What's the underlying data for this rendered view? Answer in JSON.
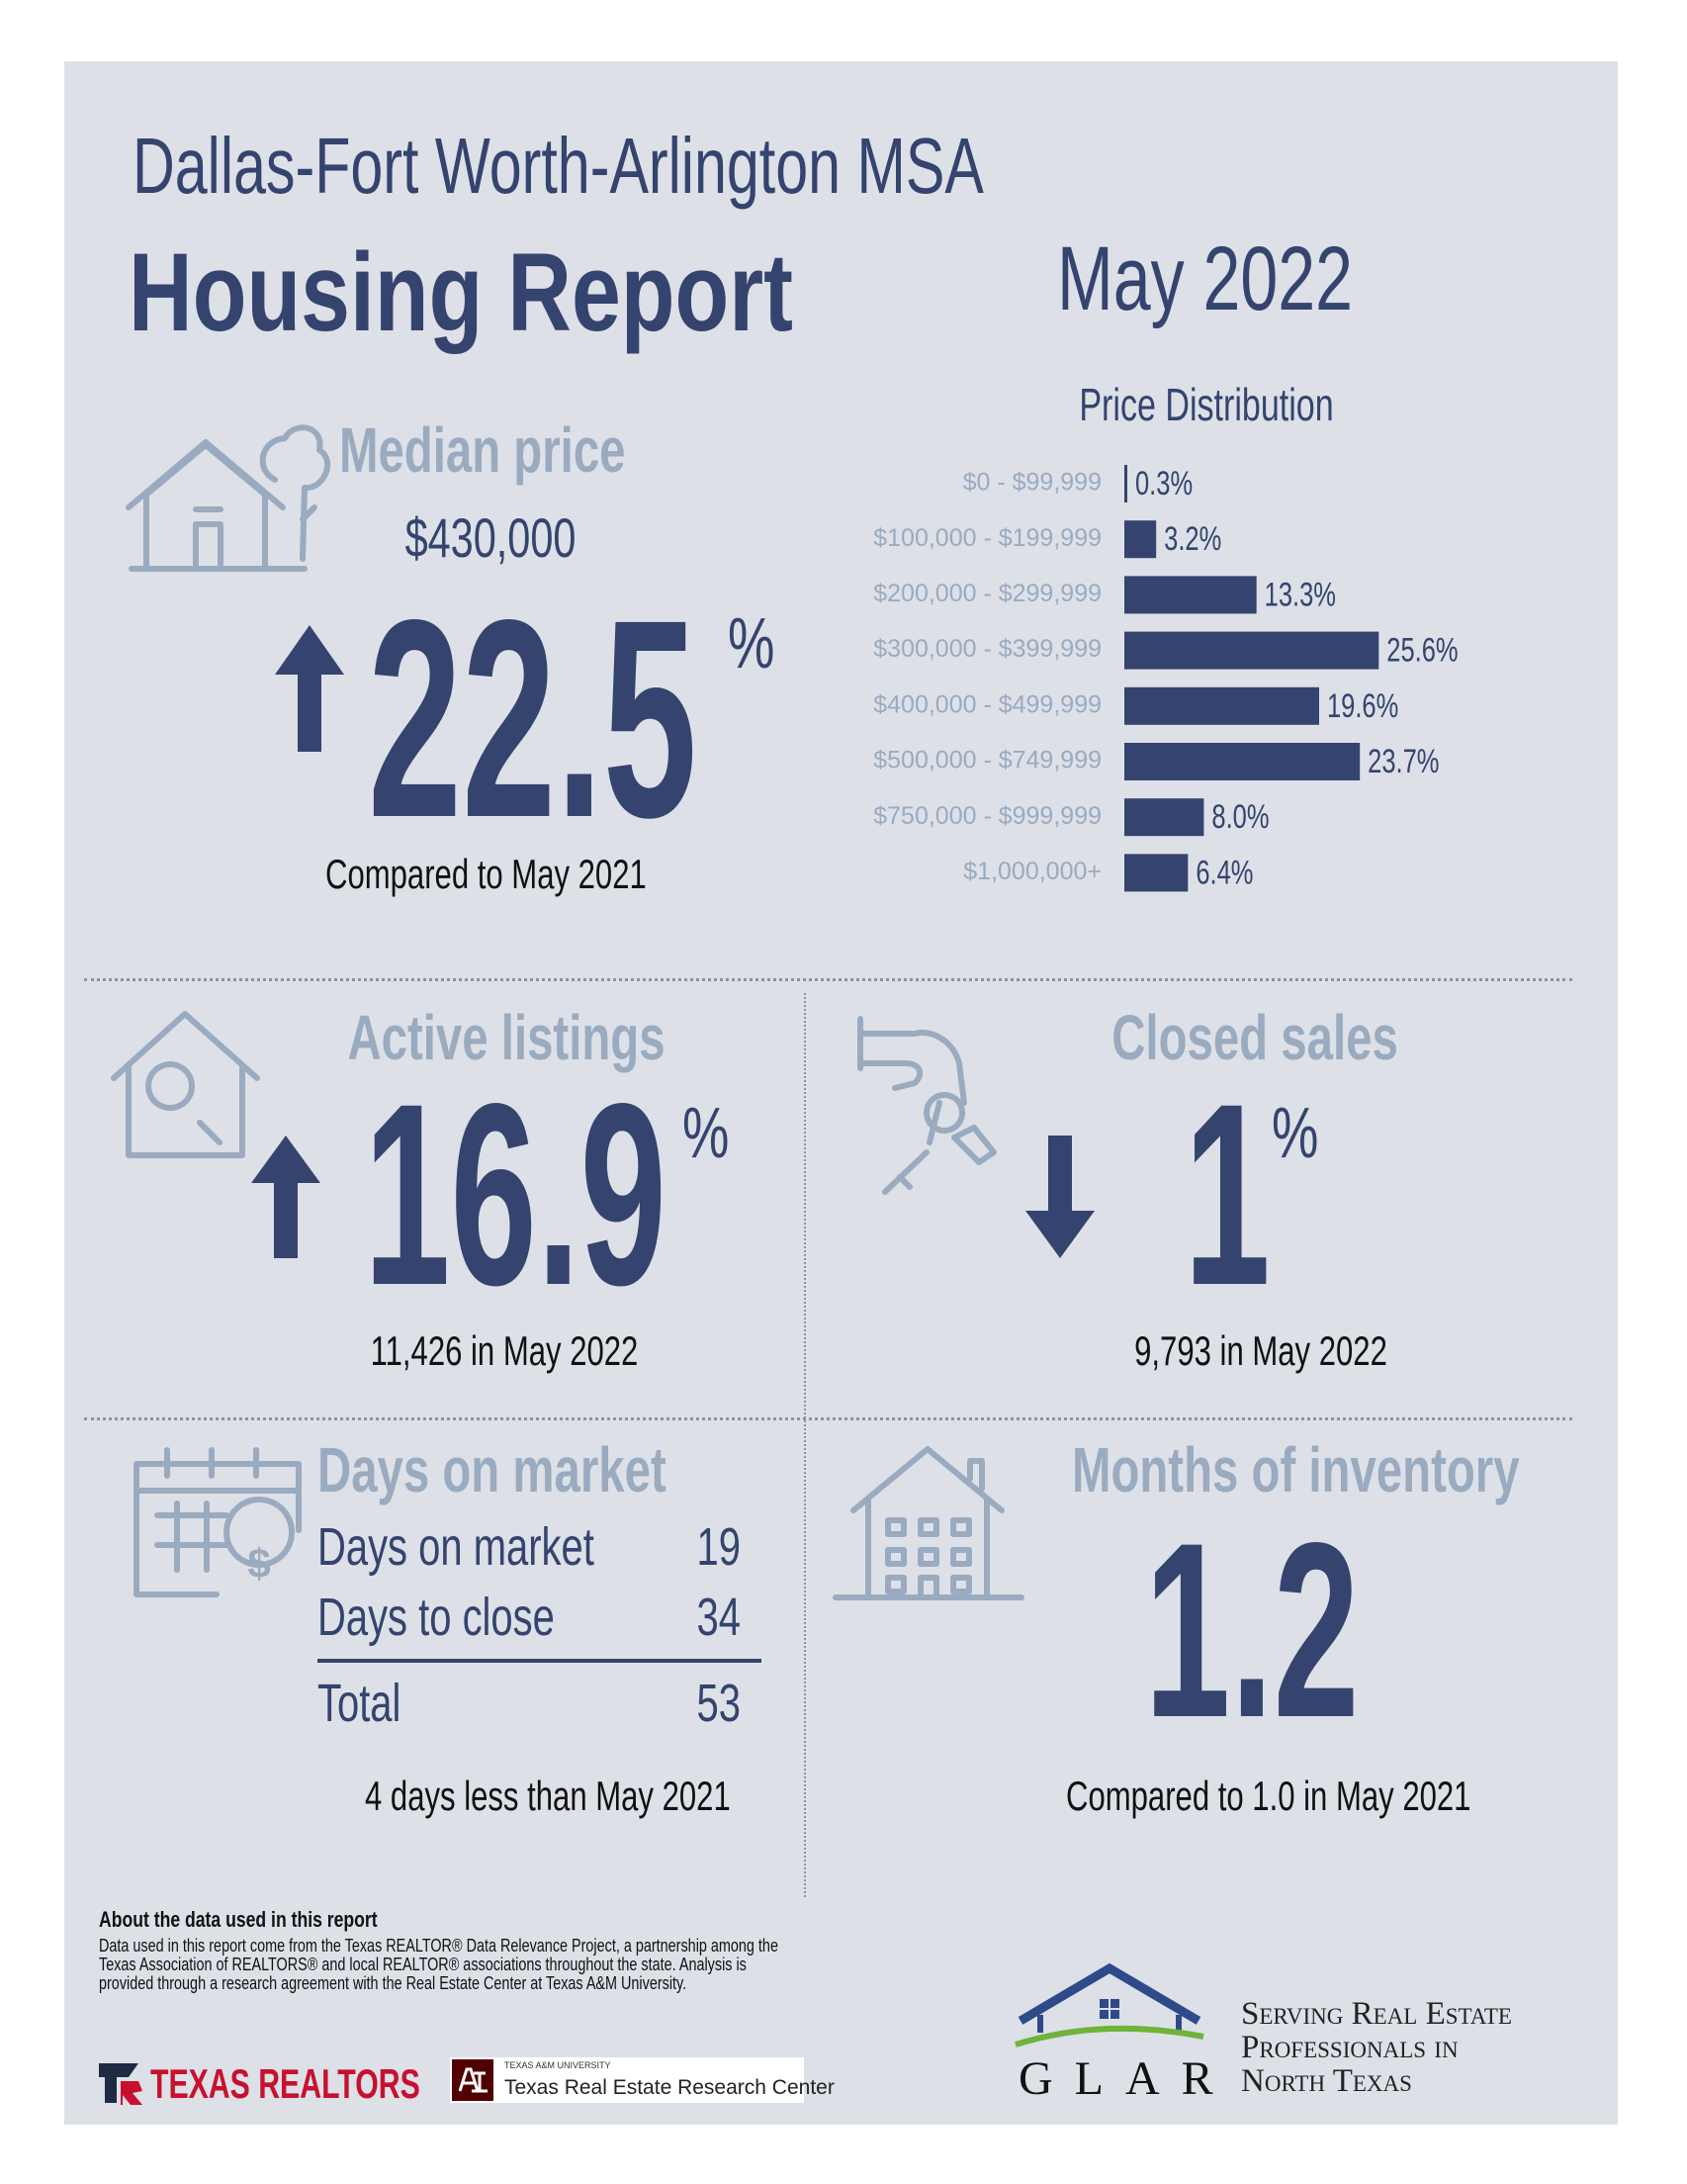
{
  "header": {
    "region": "Dallas-Fort Worth-Arlington MSA",
    "title": "Housing Report",
    "period": "May 2022"
  },
  "median_price": {
    "label": "Median price",
    "price": "$430,000",
    "change": 22.5,
    "unit": "%",
    "note": "Compared to May 2021"
  },
  "chart_data": {
    "type": "bar",
    "title": "Price Distribution",
    "orientation": "horizontal",
    "color": "#34446e",
    "categories": [
      "$0 - $99,999",
      "$100,000 - $199,999",
      "$200,000 - $299,999",
      "$300,000 - $399,999",
      "$400,000 - $499,999",
      "$500,000 - $749,999",
      "$750,000 - $999,999",
      "$1,000,000+"
    ],
    "values": [
      0.3,
      3.2,
      13.3,
      25.6,
      19.6,
      23.7,
      8.0,
      6.4
    ],
    "value_labels": [
      "0.3%",
      "3.2%",
      "13.3%",
      "25.6%",
      "19.6%",
      "23.7%",
      "8.0%",
      "6.4%"
    ]
  },
  "active_listings": {
    "label": "Active listings",
    "change": 16.9,
    "unit": "%",
    "note": "11,426 in May 2022"
  },
  "closed_sales": {
    "label": "Closed sales",
    "change": 1,
    "unit": "%",
    "note": "9,793 in May 2022"
  },
  "days_on_market": {
    "label": "Days on market",
    "rows": [
      {
        "label": "Days on market",
        "value": 19
      },
      {
        "label": "Days to close",
        "value": 34
      },
      {
        "label": "Total",
        "value": 53
      }
    ],
    "note": "4 days less than May 2021"
  },
  "months_of_inventory": {
    "label": "Months of inventory",
    "value": 1.2,
    "note": "Compared to 1.0 in May 2021"
  },
  "footer": {
    "about_title": "About the data used in this report",
    "about_text": "Data used in this report come from the Texas REALTOR® Data Relevance Project, a partnership among the Texas Association of REALTORS® and local REALTOR® associations throughout the state. Analysis is provided through a research agreement with the Real Estate Center at Texas A&M University.",
    "texas_realtors": "TEXAS REALTORS",
    "tamu_small": "TEXAS A&M UNIVERSITY",
    "tamu_center": "Texas Real Estate Research Center",
    "glar": "GLAR",
    "tagline": [
      "Serving Real Estate",
      "Professionals in",
      "North Texas"
    ]
  }
}
